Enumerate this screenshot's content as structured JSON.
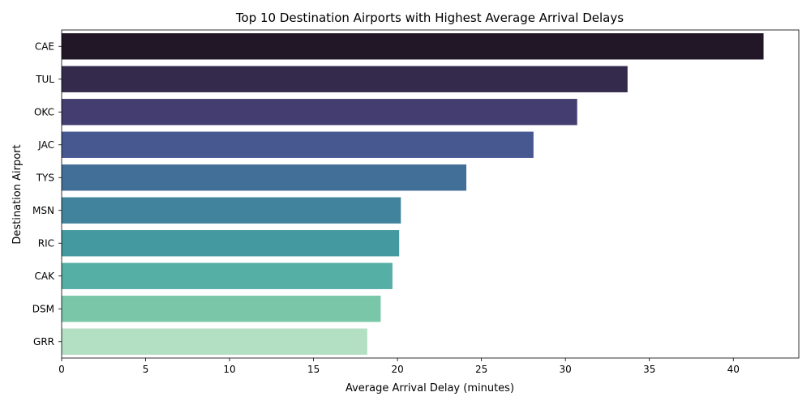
{
  "chart_data": {
    "type": "bar",
    "orientation": "horizontal",
    "title": "Top 10 Destination Airports with Highest Average Arrival Delays",
    "xlabel": "Average Arrival Delay (minutes)",
    "ylabel": "Destination Airport",
    "categories": [
      "CAE",
      "TUL",
      "OKC",
      "JAC",
      "TYS",
      "MSN",
      "RIC",
      "CAK",
      "DSM",
      "GRR"
    ],
    "values": [
      41.8,
      33.7,
      30.7,
      28.1,
      24.1,
      20.2,
      20.1,
      19.7,
      19.0,
      18.2
    ],
    "colors": [
      "#221727",
      "#342a4b",
      "#433d70",
      "#475891",
      "#426f97",
      "#41839d",
      "#4498a0",
      "#56afa4",
      "#7ac6a8",
      "#b3dfc3"
    ],
    "xlim": [
      0,
      43.9
    ],
    "xticks": [
      0,
      5,
      10,
      15,
      20,
      25,
      30,
      35,
      40
    ],
    "grid": false,
    "legend": "none"
  }
}
